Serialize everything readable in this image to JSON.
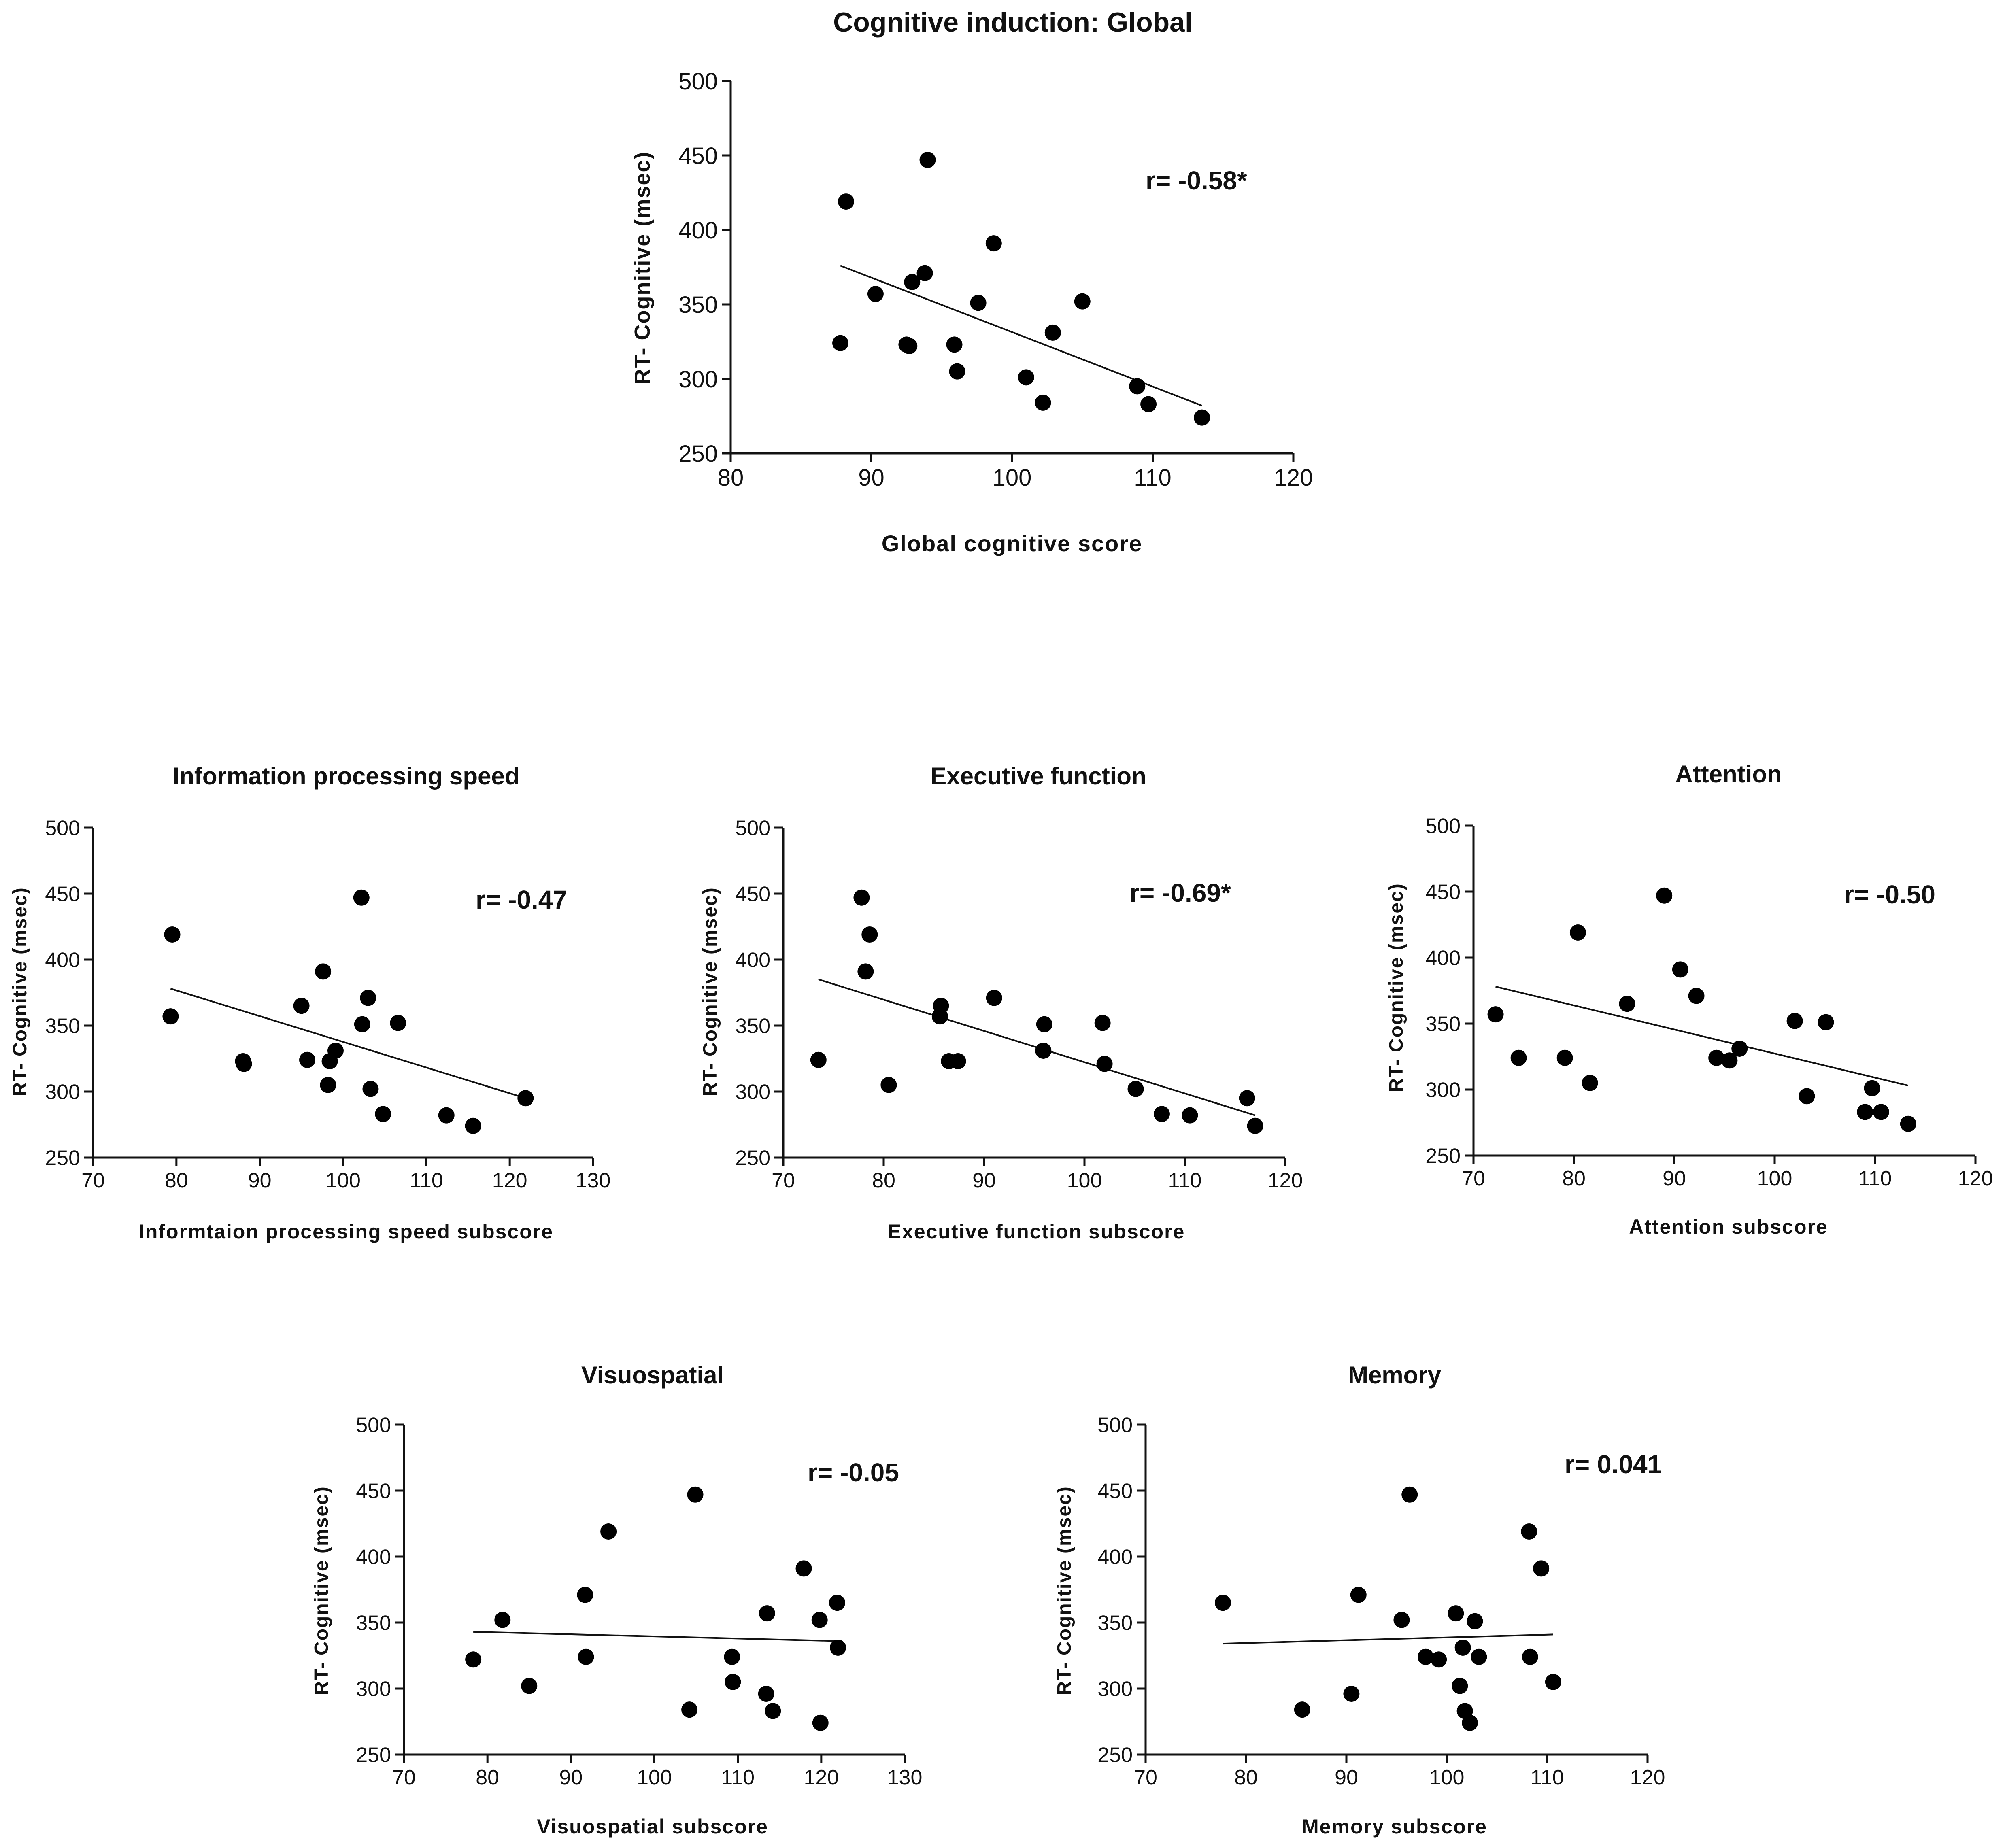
{
  "chart_data": [
    {
      "type": "scatter",
      "title": "Cognitive induction: Global",
      "xlabel": "Global cognitive score",
      "ylabel": "RT- Cognitive  (msec)",
      "xlim": [
        80,
        120
      ],
      "ylim": [
        250,
        500
      ],
      "xticks": [
        80,
        90,
        100,
        110,
        120
      ],
      "yticks": [
        250,
        300,
        350,
        400,
        450,
        500
      ],
      "annotation": "r= -0.58*",
      "points": [
        [
          88.2,
          419
        ],
        [
          94.0,
          447
        ],
        [
          87.8,
          324
        ],
        [
          90.3,
          357
        ],
        [
          92.5,
          323
        ],
        [
          92.7,
          322
        ],
        [
          92.9,
          365
        ],
        [
          93.8,
          371
        ],
        [
          95.9,
          323
        ],
        [
          96.1,
          305
        ],
        [
          97.6,
          351
        ],
        [
          98.7,
          391
        ],
        [
          101.0,
          301
        ],
        [
          102.2,
          284
        ],
        [
          102.9,
          331
        ],
        [
          105.0,
          352
        ],
        [
          108.9,
          295
        ],
        [
          109.7,
          283
        ],
        [
          113.5,
          274
        ]
      ],
      "fit_line": [
        [
          87.8,
          376
        ],
        [
          113.5,
          282
        ]
      ]
    },
    {
      "type": "scatter",
      "title": "Information processing speed",
      "xlabel": "Informtaion processing speed subscore",
      "ylabel": "RT- Cognitive  (msec)",
      "xlim": [
        70,
        130
      ],
      "ylim": [
        250,
        500
      ],
      "xticks": [
        70,
        80,
        90,
        100,
        110,
        120,
        130
      ],
      "yticks": [
        250,
        300,
        350,
        400,
        450,
        500
      ],
      "annotation": "r= -0.47",
      "points": [
        [
          79.5,
          419
        ],
        [
          79.3,
          357
        ],
        [
          88.0,
          323
        ],
        [
          88.1,
          321
        ],
        [
          95.0,
          365
        ],
        [
          95.7,
          324
        ],
        [
          97.6,
          391
        ],
        [
          98.2,
          305
        ],
        [
          98.4,
          323
        ],
        [
          99.1,
          331
        ],
        [
          102.2,
          447
        ],
        [
          102.3,
          351
        ],
        [
          103.0,
          371
        ],
        [
          103.3,
          302
        ],
        [
          104.8,
          283
        ],
        [
          106.6,
          352
        ],
        [
          112.4,
          282
        ],
        [
          115.6,
          274
        ],
        [
          121.9,
          295
        ]
      ],
      "fit_line": [
        [
          79.3,
          378
        ],
        [
          121.9,
          295
        ]
      ]
    },
    {
      "type": "scatter",
      "title": "Executive function",
      "xlabel": "Executive function subscore",
      "ylabel": "RT- Cognitive  (msec)",
      "xlim": [
        70,
        120
      ],
      "ylim": [
        250,
        500
      ],
      "xticks": [
        70,
        80,
        90,
        100,
        110,
        120
      ],
      "yticks": [
        250,
        300,
        350,
        400,
        450,
        500
      ],
      "annotation": "r= -0.69*",
      "points": [
        [
          73.5,
          324
        ],
        [
          77.8,
          447
        ],
        [
          78.2,
          391
        ],
        [
          78.6,
          419
        ],
        [
          80.5,
          305
        ],
        [
          85.6,
          357
        ],
        [
          85.7,
          365
        ],
        [
          86.5,
          323
        ],
        [
          87.4,
          323
        ],
        [
          91.0,
          371
        ],
        [
          96.0,
          351
        ],
        [
          95.9,
          331
        ],
        [
          101.8,
          352
        ],
        [
          102.0,
          321
        ],
        [
          105.1,
          302
        ],
        [
          107.7,
          283
        ],
        [
          110.5,
          282
        ],
        [
          116.2,
          295
        ],
        [
          117.0,
          274
        ]
      ],
      "fit_line": [
        [
          73.5,
          385
        ],
        [
          117.0,
          282
        ]
      ]
    },
    {
      "type": "scatter",
      "title": "Attention",
      "xlabel": "Attention subscore",
      "ylabel": "RT- Cognitive  (msec)",
      "xlim": [
        70,
        120
      ],
      "ylim": [
        250,
        500
      ],
      "xticks": [
        70,
        80,
        90,
        100,
        110,
        120
      ],
      "yticks": [
        250,
        300,
        350,
        400,
        450,
        500
      ],
      "annotation": "r= -0.50",
      "points": [
        [
          72.2,
          357
        ],
        [
          74.5,
          324
        ],
        [
          79.1,
          324
        ],
        [
          80.4,
          419
        ],
        [
          81.6,
          305
        ],
        [
          85.3,
          365
        ],
        [
          89.0,
          447
        ],
        [
          90.6,
          391
        ],
        [
          92.2,
          371
        ],
        [
          94.2,
          324
        ],
        [
          95.5,
          322
        ],
        [
          96.5,
          331
        ],
        [
          102.0,
          352
        ],
        [
          105.1,
          351
        ],
        [
          103.2,
          295
        ],
        [
          109.0,
          283
        ],
        [
          109.7,
          301
        ],
        [
          110.6,
          283
        ],
        [
          113.3,
          274
        ]
      ],
      "fit_line": [
        [
          72.2,
          378
        ],
        [
          113.3,
          303
        ]
      ]
    },
    {
      "type": "scatter",
      "title": "Visuospatial",
      "xlabel": "Visuospatial subscore",
      "ylabel": "RT- Cognitive  (msec)",
      "xlim": [
        70,
        130
      ],
      "ylim": [
        250,
        500
      ],
      "xticks": [
        70,
        80,
        90,
        100,
        110,
        120,
        130
      ],
      "yticks": [
        250,
        300,
        350,
        400,
        450,
        500
      ],
      "annotation": "r= -0.05",
      "points": [
        [
          78.3,
          322
        ],
        [
          81.8,
          352
        ],
        [
          85.0,
          302
        ],
        [
          91.7,
          371
        ],
        [
          91.8,
          324
        ],
        [
          94.5,
          419
        ],
        [
          104.2,
          284
        ],
        [
          104.9,
          447
        ],
        [
          109.3,
          324
        ],
        [
          109.4,
          305
        ],
        [
          113.5,
          357
        ],
        [
          113.4,
          296
        ],
        [
          114.2,
          283
        ],
        [
          117.9,
          391
        ],
        [
          119.8,
          352
        ],
        [
          119.9,
          274
        ],
        [
          121.9,
          365
        ],
        [
          122.0,
          331
        ]
      ],
      "fit_line": [
        [
          78.3,
          343
        ],
        [
          122.0,
          336
        ]
      ]
    },
    {
      "type": "scatter",
      "title": "Memory",
      "xlabel": "Memory subscore",
      "ylabel": "RT- Cognitive  (msec)",
      "xlim": [
        70,
        120
      ],
      "ylim": [
        250,
        500
      ],
      "xticks": [
        70,
        80,
        90,
        100,
        110,
        120
      ],
      "yticks": [
        250,
        300,
        350,
        400,
        450,
        500
      ],
      "annotation": "r= 0.041",
      "points": [
        [
          77.7,
          365
        ],
        [
          85.6,
          284
        ],
        [
          90.5,
          296
        ],
        [
          91.2,
          371
        ],
        [
          95.5,
          352
        ],
        [
          96.3,
          447
        ],
        [
          97.9,
          324
        ],
        [
          99.2,
          322
        ],
        [
          100.9,
          357
        ],
        [
          101.3,
          302
        ],
        [
          101.6,
          331
        ],
        [
          101.8,
          283
        ],
        [
          102.3,
          274
        ],
        [
          102.8,
          351
        ],
        [
          103.2,
          324
        ],
        [
          108.2,
          419
        ],
        [
          108.3,
          324
        ],
        [
          109.4,
          391
        ],
        [
          110.6,
          305
        ]
      ],
      "fit_line": [
        [
          77.7,
          334
        ],
        [
          110.6,
          341
        ]
      ]
    }
  ]
}
